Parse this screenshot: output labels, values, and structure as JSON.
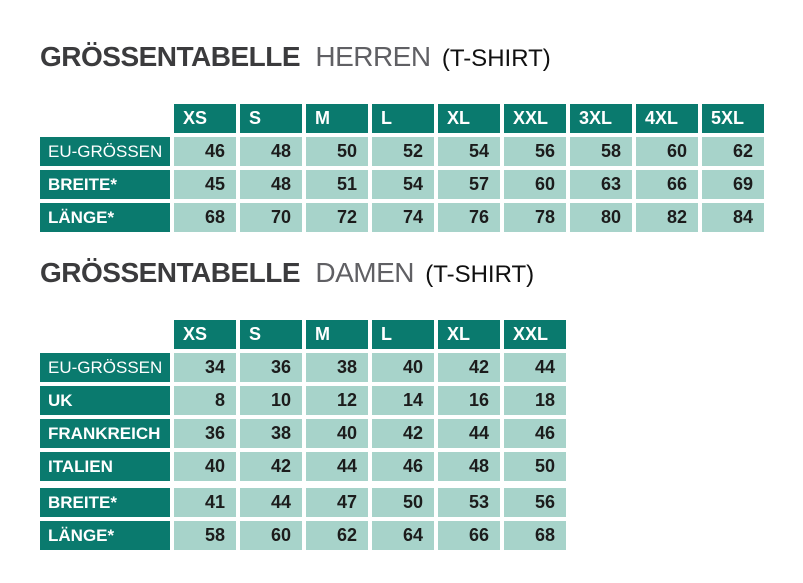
{
  "style": {
    "header_bg": "#0a7a6e",
    "cell_bg": "#a7d3ca",
    "title_main": "#3b3b3d",
    "title_sub": "#606064",
    "title_suffix": "#101010",
    "value_text": "#1c1c1c",
    "page_bg": "#ffffff"
  },
  "chart_data": [
    {
      "type": "table",
      "title": {
        "bold": "GRÖSSENTABELLE",
        "light": "HERREN",
        "suffix": "(T-SHIRT)"
      },
      "columns": [
        "XS",
        "S",
        "M",
        "L",
        "XL",
        "XXL",
        "3XL",
        "4XL",
        "5XL"
      ],
      "rows": [
        {
          "label": "EU-GRÖSSEN",
          "bold": false,
          "values": [
            46,
            48,
            50,
            52,
            54,
            56,
            58,
            60,
            62
          ]
        },
        {
          "label": "BREITE*",
          "bold": true,
          "values": [
            45,
            48,
            51,
            54,
            57,
            60,
            63,
            66,
            69
          ]
        },
        {
          "label": "LÄNGE*",
          "bold": true,
          "values": [
            68,
            70,
            72,
            74,
            76,
            78,
            80,
            82,
            84
          ]
        }
      ]
    },
    {
      "type": "table",
      "title": {
        "bold": "GRÖSSENTABELLE",
        "light": "DAMEN",
        "suffix": "(T-SHIRT)"
      },
      "columns": [
        "XS",
        "S",
        "M",
        "L",
        "XL",
        "XXL"
      ],
      "rows": [
        {
          "label": "EU-GRÖSSEN",
          "bold": false,
          "values": [
            34,
            36,
            38,
            40,
            42,
            44
          ]
        },
        {
          "label": "UK",
          "bold": true,
          "values": [
            8,
            10,
            12,
            14,
            16,
            18
          ]
        },
        {
          "label": "FRANKREICH",
          "bold": true,
          "values": [
            36,
            38,
            40,
            42,
            44,
            46
          ]
        },
        {
          "label": "ITALIEN",
          "bold": true,
          "values": [
            40,
            42,
            44,
            46,
            48,
            50
          ],
          "gap_after": true
        },
        {
          "label": "BREITE*",
          "bold": true,
          "values": [
            41,
            44,
            47,
            50,
            53,
            56
          ]
        },
        {
          "label": "LÄNGE*",
          "bold": true,
          "values": [
            58,
            60,
            62,
            64,
            66,
            68
          ]
        }
      ]
    }
  ]
}
